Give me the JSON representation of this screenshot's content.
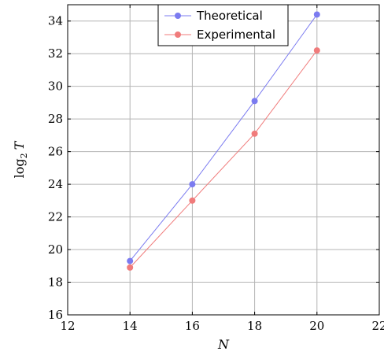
{
  "chart_data": {
    "type": "line",
    "x": [
      14,
      16,
      18,
      20
    ],
    "series": [
      {
        "name": "Theoretical",
        "values": [
          19.3,
          24.0,
          29.1,
          34.4
        ],
        "color": "#7b7bf0"
      },
      {
        "name": "Experimental",
        "values": [
          18.9,
          23.0,
          27.1,
          32.2
        ],
        "color": "#f07b7b"
      }
    ],
    "xlabel": "N",
    "ylabel": "log",
    "ylabel_sub": "2",
    "ylabel_var": "T",
    "xlim": [
      12,
      22
    ],
    "ylim": [
      16,
      35
    ],
    "xticks": [
      12,
      14,
      16,
      18,
      20,
      22
    ],
    "yticks": [
      16,
      18,
      20,
      22,
      24,
      26,
      28,
      30,
      32,
      34
    ],
    "grid": true,
    "legend_position": "top"
  }
}
